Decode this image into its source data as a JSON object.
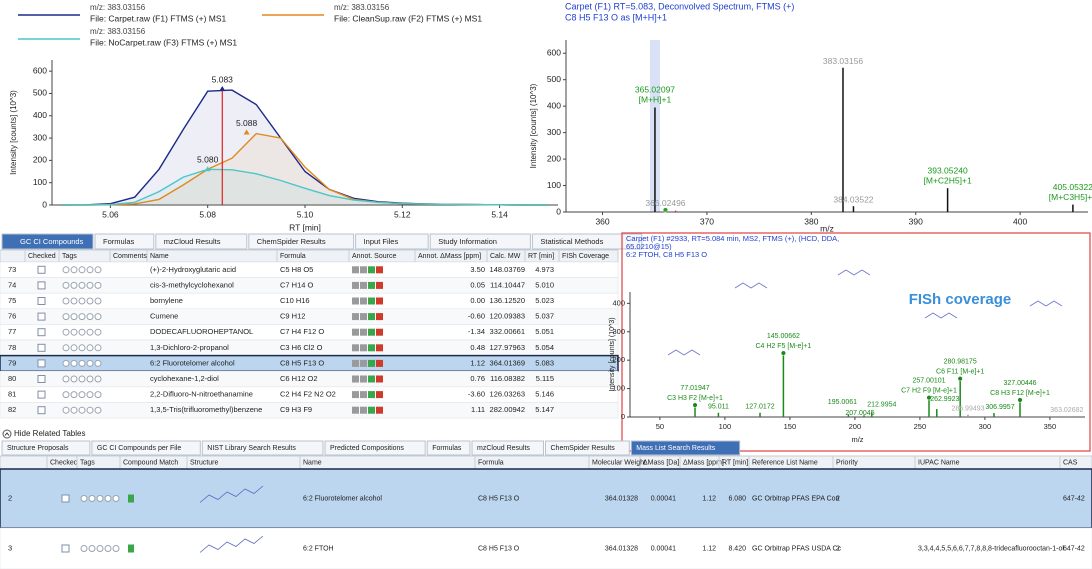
{
  "chromatogram": {
    "type": "line",
    "xlabel": "RT [min]",
    "ylabel": "Intensity [counts] (10^3)",
    "x": [
      5.05,
      5.055,
      5.06,
      5.065,
      5.07,
      5.075,
      5.08,
      5.085,
      5.09,
      5.095,
      5.1,
      5.105,
      5.11,
      5.115,
      5.12,
      5.125,
      5.13,
      5.135,
      5.14,
      5.145,
      5.15
    ],
    "series": [
      {
        "mz": "m/z: 383.03156",
        "name": "File: Carpet.raw (F1) FTMS (+) MS1",
        "color": "#1c2a8a",
        "values": [
          0,
          1,
          6,
          35,
          160,
          340,
          510,
          515,
          450,
          300,
          150,
          70,
          30,
          15,
          8,
          5,
          3,
          2,
          1,
          0,
          0
        ]
      },
      {
        "mz": "m/z: 383.03156",
        "name": "File: CleanSup.raw (F2) FTMS (+) MS1",
        "color": "#e08a1e",
        "values": [
          0,
          0,
          1,
          5,
          25,
          90,
          160,
          210,
          320,
          300,
          170,
          70,
          25,
          12,
          6,
          4,
          3,
          2,
          1,
          0,
          0
        ]
      },
      {
        "mz": "m/z: 383.03156",
        "name": "File: NoCarpet.raw (F3) FTMS (+) MS1",
        "color": "#4cc6c6",
        "values": [
          0,
          0,
          2,
          12,
          60,
          125,
          160,
          158,
          140,
          110,
          75,
          42,
          22,
          12,
          6,
          4,
          3,
          2,
          1,
          0,
          0
        ]
      }
    ],
    "peaks": [
      {
        "series": 0,
        "x": 5.083,
        "y": 520,
        "label": "5.083"
      },
      {
        "series": 1,
        "x": 5.088,
        "y": 325,
        "label": "5.088"
      },
      {
        "series": 2,
        "x": 5.08,
        "y": 160,
        "label": "5.080"
      }
    ],
    "peak_line_color": "#e02020",
    "xlim": [
      5.048,
      5.152
    ],
    "xticks": [
      5.06,
      5.08,
      {
        "value": 5.1,
        "label": "5.10"
      },
      5.12,
      5.14
    ],
    "ylim": [
      0,
      650
    ],
    "yticks": [
      0,
      100,
      200,
      300,
      400,
      500,
      600
    ]
  },
  "spectrum": {
    "type": "stick",
    "title": "Carpet (F1) RT=5.083, Deconvolved Spectrum, FTMS (+)",
    "subtitle": "C8 H5 F13 O as [M+H]+1",
    "xlabel": "m/z",
    "ylabel": "Intensity [counts] (10^3)",
    "xlim": [
      356.5,
      406.5
    ],
    "xticks": [
      360,
      370,
      380,
      390,
      400
    ],
    "ylim": [
      0,
      650
    ],
    "yticks": [
      0,
      100,
      200,
      300,
      400,
      500,
      600
    ],
    "peaks": [
      {
        "mz": 365.02097,
        "intensity": 395,
        "label": "365.02097",
        "ion": "[M+H]+1",
        "color": "#111111",
        "label_color": "#1a9a1a"
      },
      {
        "mz": 366.02496,
        "intensity": 8,
        "label": "366.02496",
        "color": "#2aa02a",
        "label_color": "#999999",
        "marker": "circle"
      },
      {
        "mz": 367,
        "intensity": 5,
        "color": "#d02020"
      },
      {
        "mz": 383.03156,
        "intensity": 545,
        "label": "383.03156",
        "color": "#111111",
        "label_color": "#999999"
      },
      {
        "mz": 384.03522,
        "intensity": 22,
        "label": "384.03522",
        "color": "#111111",
        "label_color": "#999999"
      },
      {
        "mz": 393.0524,
        "intensity": 90,
        "label": "393.05240",
        "ion": "[M+C2H5]+1",
        "color": "#111111",
        "label_color": "#1a9a1a"
      },
      {
        "mz": 405.05322,
        "intensity": 28,
        "label": "405.05322",
        "ion": "[M+C3H5]+1",
        "color": "#111111",
        "label_color": "#1a9a1a"
      }
    ]
  },
  "ms2": {
    "type": "stick",
    "title_lines": [
      "Carpet (F1) #2933, RT=5.084 min, MS2, FTMS (+), (HCD, DDA,",
      "65.0210@15)",
      "6:2 FTOH, C8 H5 F13 O"
    ],
    "overlay": "FISh coverage",
    "xlabel": "m/z",
    "ylabel": "Intensity [counts] (10^3)",
    "xlim": [
      27,
      377
    ],
    "xticks": [
      50,
      100,
      150,
      200,
      250,
      300,
      350
    ],
    "ylim": [
      0,
      440
    ],
    "yticks": [
      0,
      100,
      200,
      300,
      400
    ],
    "peaks": [
      {
        "mz": 77.01947,
        "intensity": 42,
        "label": "77.01947",
        "ion": "C3 H3 F2 [M-e]+1",
        "color": "#1a8a1a",
        "label_color": "#1a8a1a",
        "marker": "circle"
      },
      {
        "mz": 95.011,
        "intensity": 15,
        "label": "95.011",
        "color": "#1a8a1a",
        "label_color": "#1a8a1a"
      },
      {
        "mz": 127.0172,
        "intensity": 15,
        "label": "127.0172",
        "color": "#1a8a1a",
        "label_color": "#1a8a1a"
      },
      {
        "mz": 145.00662,
        "intensity": 225,
        "label": "145.00662",
        "ion": "C4 H2 F5 [M-e]+1",
        "color": "#1a8a1a",
        "label_color": "#1a8a1a",
        "marker": "circle"
      },
      {
        "mz": 195.0061,
        "intensity": 10,
        "label": "195.0061",
        "color": "#1a8a1a",
        "label_color": "#1a8a1a"
      },
      {
        "mz": 207.0045,
        "intensity": 6,
        "label": "207.0045",
        "color": "#1a8a1a",
        "label_color": "#1a8a1a"
      },
      {
        "mz": 212.9954,
        "intensity": 16,
        "label": "212.9954",
        "color": "#1a8a1a",
        "label_color": "#1a8a1a"
      },
      {
        "mz": 257.00101,
        "intensity": 68,
        "label": "257.00101",
        "ion": "C7 H2 F9 [M-e]+1",
        "color": "#1a8a1a",
        "label_color": "#1a8a1a",
        "marker": "circle"
      },
      {
        "mz": 262.9923,
        "intensity": 28,
        "label": "262.9923",
        "color": "#1a8a1a",
        "label_color": "#1a8a1a"
      },
      {
        "mz": 280.98175,
        "intensity": 135,
        "label": "280.98175",
        "ion": "C6 F11 [M-e]+1",
        "color": "#1a8a1a",
        "label_color": "#1a8a1a",
        "marker": "circle"
      },
      {
        "mz": 286.99493,
        "intensity": 8,
        "label": "286.99493",
        "color": "#999999",
        "label_color": "#aaaaaa"
      },
      {
        "mz": 306.9957,
        "intensity": 14,
        "label": "306.9957",
        "color": "#1a8a1a",
        "label_color": "#1a8a1a"
      },
      {
        "mz": 327.00446,
        "intensity": 60,
        "label": "327.00446",
        "ion": "C8 H3 F12 [M-e]+1",
        "color": "#1a8a1a",
        "label_color": "#1a8a1a",
        "marker": "circle"
      },
      {
        "mz": 363.02682,
        "intensity": 3,
        "label": "363.02682",
        "color": "#999999",
        "label_color": "#aaaaaa"
      }
    ]
  },
  "compounds": {
    "tabs": [
      "GC CI Compounds",
      "Formulas",
      "mzCloud Results",
      "ChemSpider Results",
      "Input Files",
      "Study Information",
      "Statistical Methods"
    ],
    "active_tab": 0,
    "selected_row": 6,
    "columns": [
      "Checked",
      "Tags",
      "Comments",
      "Name",
      "Formula",
      "Annot. Source",
      "Annot. ΔMass [ppm]",
      "Calc. MW",
      "RT [min]",
      "FISh Coverage"
    ],
    "rows": [
      {
        "id": "73",
        "name": "(+)-2-Hydroxyglutaric acid",
        "formula": "C5 H8 O5",
        "delta_ppm": "3.50",
        "calc_mw": "148.03769",
        "rt": "4.973"
      },
      {
        "id": "74",
        "name": "cis-3-methylcyclohexanol",
        "formula": "C7 H14 O",
        "delta_ppm": "0.05",
        "calc_mw": "114.10447",
        "rt": "5.010"
      },
      {
        "id": "75",
        "name": "bornylene",
        "formula": "C10 H16",
        "delta_ppm": "0.00",
        "calc_mw": "136.12520",
        "rt": "5.023"
      },
      {
        "id": "76",
        "name": "Cumene",
        "formula": "C9 H12",
        "delta_ppm": "-0.60",
        "calc_mw": "120.09383",
        "rt": "5.037"
      },
      {
        "id": "77",
        "name": "DODECAFLUOROHEPTANOL",
        "formula": "C7 H4 F12 O",
        "delta_ppm": "-1.34",
        "calc_mw": "332.00661",
        "rt": "5.051"
      },
      {
        "id": "78",
        "name": "1,3-Dichloro-2-propanol",
        "formula": "C3 H6 Cl2 O",
        "delta_ppm": "0.48",
        "calc_mw": "127.97963",
        "rt": "5.054"
      },
      {
        "id": "79",
        "name": "6:2 Fluorotelomer alcohol",
        "formula": "C8 H5 F13 O",
        "delta_ppm": "1.12",
        "calc_mw": "364.01369",
        "rt": "5.083"
      },
      {
        "id": "80",
        "name": "cyclohexane-1,2-diol",
        "formula": "C6 H12 O2",
        "delta_ppm": "0.76",
        "calc_mw": "116.08382",
        "rt": "5.115"
      },
      {
        "id": "81",
        "name": "2,2-Difluoro-N-nitroethanamine",
        "formula": "C2 H4 F2 N2 O2",
        "delta_ppm": "-3.60",
        "calc_mw": "126.03263",
        "rt": "5.146"
      },
      {
        "id": "82",
        "name": "1,3,5-Tris(trifluoromethyl)benzene",
        "formula": "C9 H3 F9",
        "delta_ppm": "1.11",
        "calc_mw": "282.00942",
        "rt": "5.147"
      }
    ]
  },
  "hide_related": "Hide Related Tables",
  "related": {
    "tabs": [
      "Structure Proposals",
      "GC CI Compounds per File",
      "NIST Library Search Results",
      "Predicted Compositions",
      "Formulas",
      "mzCloud Results",
      "ChemSpider Results",
      "Mass List Search Results"
    ],
    "active_tab": 7,
    "selected_row": 0,
    "columns": [
      "Checked",
      "Tags",
      "Compound Match",
      "Structure",
      "Name",
      "Formula",
      "Molecular Weight",
      "ΔMass [Da]",
      "ΔMass [ppm]",
      "RT [min]",
      "Reference List Name",
      "Priority",
      "IUPAC Name",
      "CAS"
    ],
    "rows": [
      {
        "id": "2",
        "name": "6:2 Fluorotelomer alcohol",
        "formula": "C8 H5 F13 O",
        "mw": "364.01328",
        "delta_da": "0.00041",
        "delta_ppm": "1.12",
        "rt": "6.080",
        "reference": "GC Orbitrap PFAS EPA Con",
        "priority": "2",
        "cas": "647-42"
      },
      {
        "id": "3",
        "name": "6:2 FTOH",
        "formula": "C8 H5 F13 O",
        "mw": "364.01328",
        "delta_da": "0.00041",
        "delta_ppm": "1.12",
        "rt": "8.420",
        "reference": "GC Orbitrap PFAS USDA Cc",
        "priority": "2",
        "iupac": "3,3,4,4,5,5,6,6,7,7,8,8,8-tridecafluorooctan-1-ol",
        "cas": "647-42"
      }
    ]
  }
}
